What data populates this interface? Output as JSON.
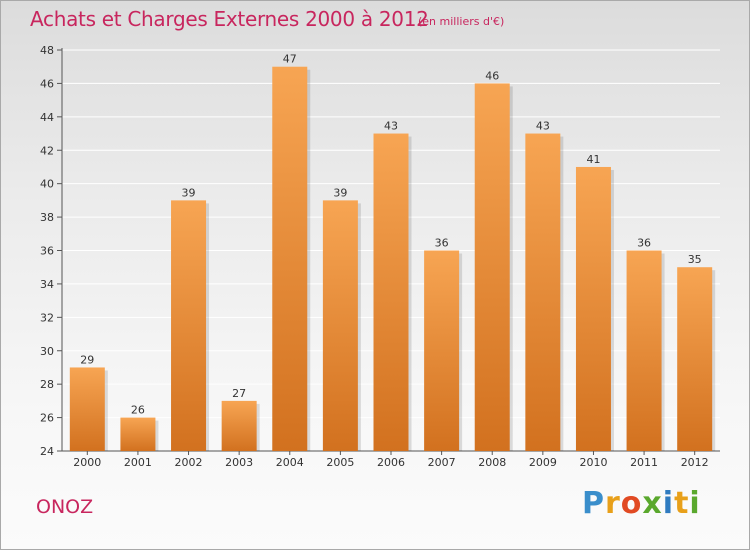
{
  "header": {
    "title": "Achats et Charges Externes 2000 à 2012",
    "unit": "(en milliers d'€)"
  },
  "footer": {
    "commune": "ONOZ",
    "brand": "Proxiti",
    "brand_letters": [
      "P",
      "r",
      "o",
      "x",
      "i",
      "t",
      "i"
    ],
    "brand_colors": [
      "#3a8ecb",
      "#e8a01a",
      "#e14a23",
      "#5aa82d",
      "#2f7bc0",
      "#e8a01a",
      "#5aa82d"
    ]
  },
  "colors": {
    "title": "#c8265e",
    "bar_light": "#f7a553",
    "bar_dark": "#d2711f",
    "text": "#333333",
    "grid": "#ffffff"
  },
  "chart_data": {
    "type": "bar",
    "categories": [
      "2000",
      "2001",
      "2002",
      "2003",
      "2004",
      "2005",
      "2006",
      "2007",
      "2008",
      "2009",
      "2010",
      "2011",
      "2012"
    ],
    "values": [
      29,
      26,
      39,
      27,
      47,
      39,
      43,
      36,
      46,
      43,
      41,
      36,
      35
    ],
    "title": "Achats et Charges Externes 2000 à 2012",
    "xlabel": "",
    "ylabel": "",
    "ylim": [
      24,
      48
    ],
    "yticks": [
      24,
      26,
      28,
      30,
      32,
      34,
      36,
      38,
      40,
      42,
      44,
      46,
      48
    ],
    "grid": true
  }
}
